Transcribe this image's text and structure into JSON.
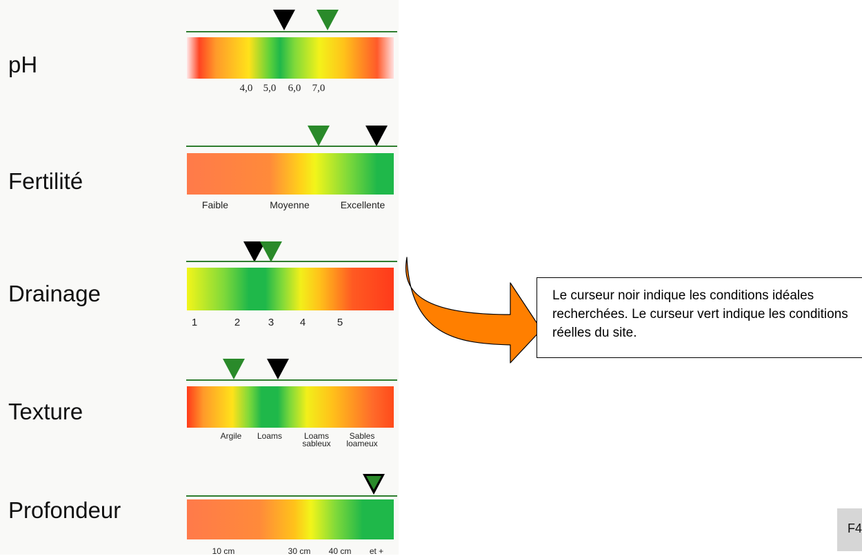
{
  "rows": [
    {
      "label": "pH",
      "ticks": [
        "4,0",
        "5,0",
        "6,0",
        "7,0"
      ],
      "ideal_marker": "black-triangle",
      "actual_marker": "green-triangle"
    },
    {
      "label": "Fertilité",
      "ticks": [
        "Faible",
        "Moyenne",
        "Excellente"
      ],
      "ideal_marker": "black-triangle",
      "actual_marker": "green-triangle"
    },
    {
      "label": "Drainage",
      "ticks": [
        "1",
        "2",
        "3",
        "4",
        "5"
      ],
      "ideal_marker": "black-triangle",
      "actual_marker": "green-triangle"
    },
    {
      "label": "Texture",
      "ticks": [
        "Argile",
        "Loams",
        "Loams\nsableux",
        "Sables\nloameux"
      ],
      "ideal_marker": "black-triangle",
      "actual_marker": "green-triangle"
    },
    {
      "label": "Profondeur",
      "ticks": [
        "10 cm",
        "30 cm",
        "40 cm",
        "et +"
      ],
      "ideal_marker": "black-triangle",
      "actual_marker": "green-triangle"
    }
  ],
  "callout": {
    "text": "Le curseur noir indique les conditions idéales recherchées.  Le curseur vert indique les conditions réelles du site."
  },
  "arrow": {
    "color": "#ff7f00",
    "icon": "curved-arrow-right-icon"
  },
  "corner_tag": {
    "text": "F4"
  },
  "colors": {
    "red": "#ff3a1a",
    "orange": "#ff8a3a",
    "yellow": "#fff200",
    "green": "#1fb84a",
    "marker_black": "#000000",
    "marker_green": "#2a8a2a",
    "scale_line": "#2e7d2e"
  }
}
